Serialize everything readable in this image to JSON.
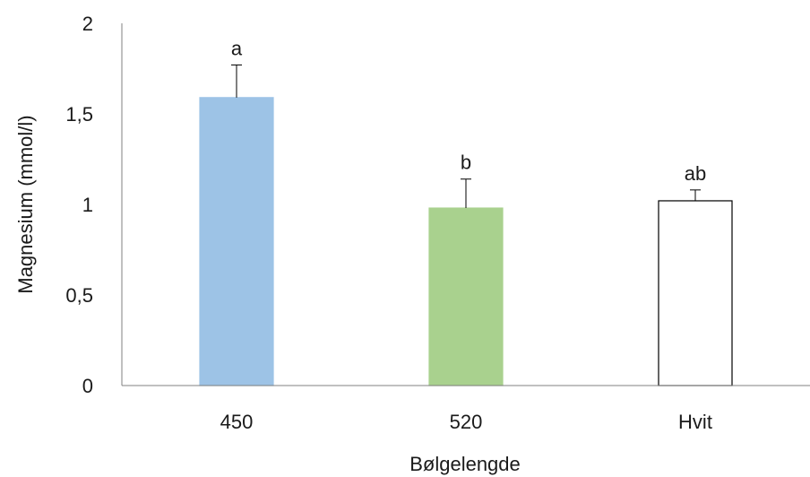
{
  "chart_data": {
    "type": "bar",
    "title": "",
    "xlabel": "Bølgelengde",
    "ylabel": "Magnesium (mmol/l)",
    "ylim": [
      0,
      2
    ],
    "yticks": [
      0,
      0.5,
      1,
      1.5,
      2
    ],
    "ytick_labels": [
      "0",
      "0,5",
      "1",
      "1,5",
      "2"
    ],
    "categories": [
      "450",
      "520",
      "Hvit"
    ],
    "values": [
      1.59,
      0.98,
      1.02
    ],
    "errors": [
      0.18,
      0.16,
      0.06
    ],
    "significance_labels": [
      "a",
      "b",
      "ab"
    ],
    "bar_fills": [
      "#9dc3e6",
      "#a9d18e",
      "#ffffff"
    ],
    "bar_strokes": [
      "#9dc3e6",
      "#a9d18e",
      "#000000"
    ],
    "grid": false,
    "legend": "none"
  }
}
